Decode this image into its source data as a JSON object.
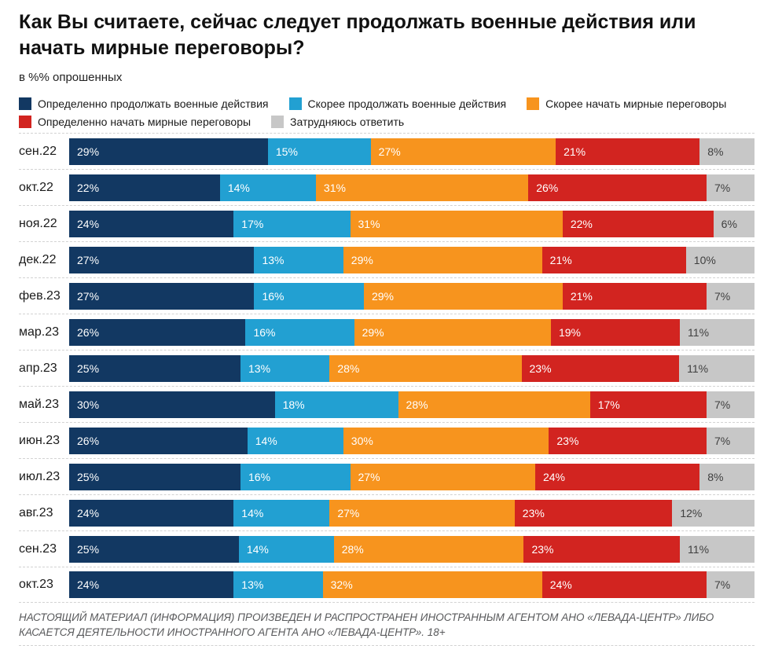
{
  "page": {
    "title_line1": "Как Вы считаете, сейчас следует продолжать военные действия или",
    "title_line2": "начать мирные переговоры?",
    "subtitle": "в %% опрошенных",
    "footer": "НАСТОЯЩИЙ МАТЕРИАЛ (ИНФОРМАЦИЯ) ПРОИЗВЕДЕН И РАСПРОСТРАНЕН ИНОСТРАННЫМ АГЕНТОМ АНО «ЛЕВАДА-ЦЕНТР» ЛИБО КАСАЕТСЯ ДЕЯТЕЛЬНОСТИ ИНОСТРАННОГО АГЕНТА АНО «ЛЕВАДА-ЦЕНТР». 18+"
  },
  "colors": {
    "definitely_continue": "#123862",
    "rather_continue": "#22a0d2",
    "rather_negotiate": "#f7941e",
    "definitely_negotiate": "#d22420",
    "hard_to_answer": "#c7c7c7",
    "value_on_gray": "#3f3f3f",
    "separator": "#d2d2d2"
  },
  "chart_data": {
    "type": "bar",
    "subtype": "horizontal-stacked",
    "title": "Как Вы считаете, сейчас следует продолжать военные действия или начать мирные переговоры?",
    "unit": "%",
    "xlim": [
      0,
      100
    ],
    "grid": false,
    "legend_position": "top",
    "categories": [
      "сен.22",
      "окт.22",
      "ноя.22",
      "дек.22",
      "фев.23",
      "мар.23",
      "апр.23",
      "май.23",
      "июн.23",
      "июл.23",
      "авг.23",
      "сен.23",
      "окт.23"
    ],
    "series": [
      {
        "name": "Определенно продолжать военные действия",
        "color": "#123862",
        "label_color": "#ffffff",
        "values": [
          29,
          22,
          24,
          27,
          27,
          26,
          25,
          30,
          26,
          25,
          24,
          25,
          24
        ]
      },
      {
        "name": "Скорее продолжать военные действия",
        "color": "#22a0d2",
        "label_color": "#ffffff",
        "values": [
          15,
          14,
          17,
          13,
          16,
          16,
          13,
          18,
          14,
          16,
          14,
          14,
          13
        ]
      },
      {
        "name": "Скорее начать мирные переговоры",
        "color": "#f7941e",
        "label_color": "#ffffff",
        "values": [
          27,
          31,
          31,
          29,
          29,
          29,
          28,
          28,
          30,
          27,
          27,
          28,
          32
        ]
      },
      {
        "name": "Определенно начать мирные переговоры",
        "color": "#d22420",
        "label_color": "#ffffff",
        "values": [
          21,
          26,
          22,
          21,
          21,
          19,
          23,
          17,
          23,
          24,
          23,
          23,
          24
        ]
      },
      {
        "name": "Затрудняюсь ответить",
        "color": "#c7c7c7",
        "label_color": "#3f3f3f",
        "values": [
          8,
          7,
          6,
          10,
          7,
          11,
          11,
          7,
          7,
          8,
          12,
          11,
          7
        ]
      }
    ],
    "legend_rows": [
      [
        0,
        1,
        2
      ],
      [
        3,
        4
      ]
    ]
  }
}
